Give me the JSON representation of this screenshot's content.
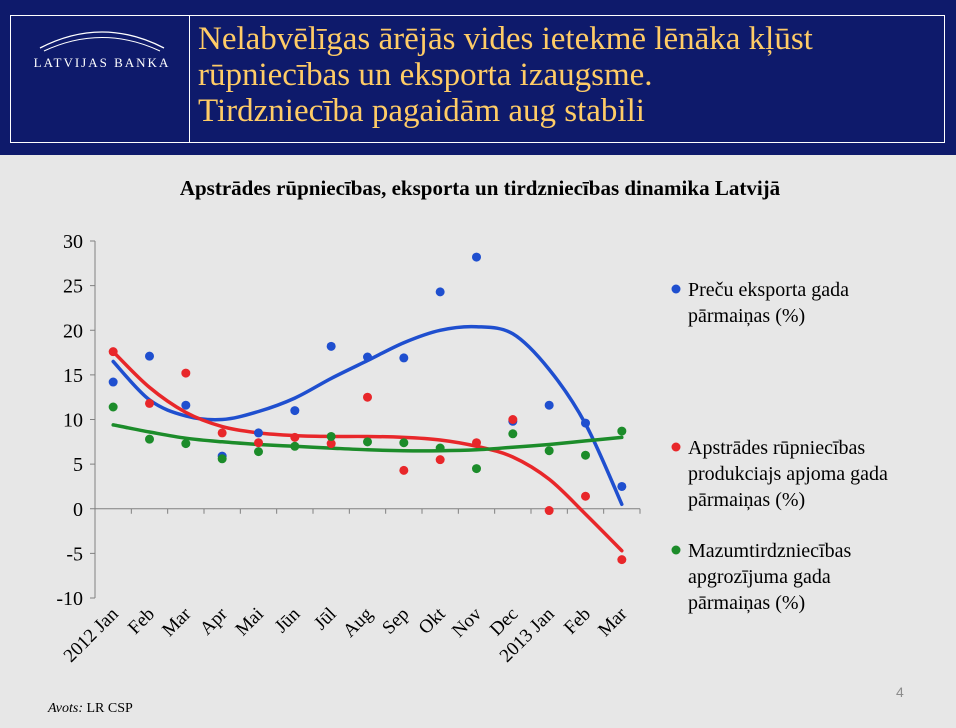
{
  "header": {
    "logo_text": "LATVIJAS BANKA",
    "title_lines": [
      "Nelabvēlīgas ārējās vides ietekmē lēnāka kļūst",
      "rūpniecības un eksporta izaugsme.",
      "Tirdzniecība pagaidām aug stabili"
    ]
  },
  "chart_data": {
    "type": "scatter",
    "title": "Apstrādes rūpniecības, eksporta un tirdzniecības dinamika Latvijā",
    "categories": [
      "2012 Jan",
      "Feb",
      "Mar",
      "Apr",
      "Mai",
      "Jūn",
      "Jūl",
      "Aug",
      "Sep",
      "Okt",
      "Nov",
      "Dec",
      "2013 Jan",
      "Feb",
      "Mar"
    ],
    "ylim": [
      -10,
      30
    ],
    "yticks": [
      30,
      25,
      20,
      15,
      10,
      5,
      0,
      -5,
      -10
    ],
    "legend_position": "right",
    "series": [
      {
        "name": "Preču eksporta gada pārmaiņas (%)",
        "legend_lines": [
          "Preču eksporta gada",
          "pārmaiņas (%)"
        ],
        "color": "#1f4fcf",
        "values": [
          14.2,
          17.1,
          11.6,
          5.9,
          8.5,
          11.0,
          18.2,
          17.0,
          16.9,
          24.3,
          28.2,
          9.8,
          11.6,
          9.6,
          2.5
        ],
        "trend": [
          16.5,
          12.2,
          10.4,
          10.0,
          10.9,
          12.4,
          14.6,
          16.6,
          18.6,
          20.0,
          20.4,
          19.6,
          15.6,
          9.5,
          0.5
        ]
      },
      {
        "name": "Apstrādes rūpniecības produkciajs apjoma gada pārmaiņas (%)",
        "legend_lines": [
          "Apstrādes rūpniecības",
          "produkciajs apjoma gada",
          "pārmaiņas (%)"
        ],
        "color": "#e8272a",
        "values": [
          17.6,
          11.8,
          15.2,
          8.5,
          7.4,
          8.0,
          7.3,
          12.5,
          4.3,
          5.5,
          7.4,
          10.0,
          -0.2,
          1.4,
          -5.7
        ],
        "trend": [
          17.6,
          13.6,
          10.8,
          9.2,
          8.5,
          8.2,
          8.1,
          8.1,
          8.0,
          7.7,
          7.0,
          5.8,
          3.3,
          -0.6,
          -4.7
        ]
      },
      {
        "name": "Mazumtirdzniecības apgrozījuma gada pārmaiņas (%)",
        "legend_lines": [
          "Mazumtirdzniecības",
          "apgrozījuma gada",
          "pārmaiņas (%)"
        ],
        "color": "#1c8c2a",
        "values": [
          11.4,
          7.8,
          7.3,
          5.6,
          6.4,
          7.0,
          8.1,
          7.5,
          7.4,
          6.8,
          4.5,
          8.4,
          6.5,
          6.0,
          8.7
        ],
        "trend": [
          9.4,
          8.6,
          7.9,
          7.5,
          7.2,
          7.0,
          6.8,
          6.6,
          6.5,
          6.5,
          6.6,
          6.9,
          7.2,
          7.6,
          8.0
        ]
      }
    ]
  },
  "footer": {
    "source_label": "Avots:",
    "source_value": "LR CSP",
    "slide_number": "4"
  }
}
